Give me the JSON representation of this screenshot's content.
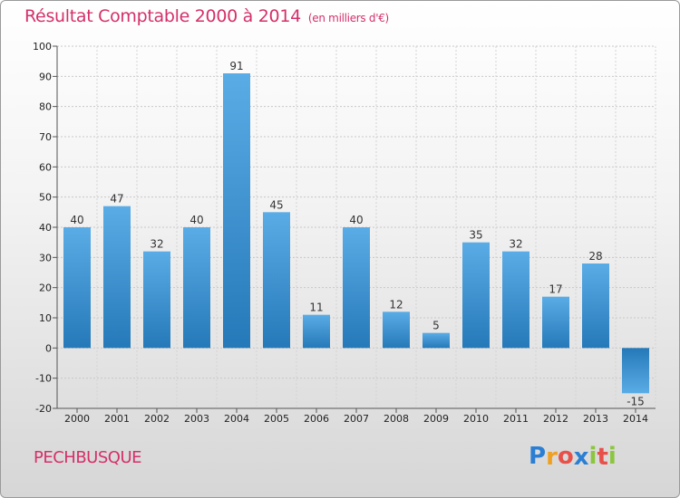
{
  "chart_data": {
    "type": "bar",
    "title": "Résultat Comptable 2000 à 2014",
    "subtitle": "(en milliers d'€)",
    "categories": [
      "2000",
      "2001",
      "2002",
      "2003",
      "2004",
      "2005",
      "2006",
      "2007",
      "2008",
      "2009",
      "2010",
      "2011",
      "2012",
      "2013",
      "2014"
    ],
    "values": [
      40,
      47,
      32,
      40,
      91,
      45,
      11,
      40,
      12,
      5,
      35,
      32,
      17,
      28,
      -15
    ],
    "ylim": [
      -20,
      100
    ],
    "yticks": [
      -20,
      -10,
      0,
      10,
      20,
      30,
      40,
      50,
      60,
      70,
      80,
      90,
      100
    ],
    "xlabel": "",
    "ylabel": "",
    "grid": "horizontal dashed",
    "bar_color_light": "#5aace6",
    "bar_color_dark": "#2579b8"
  },
  "footer": {
    "commune": "PECHBUSQUE",
    "logo_letters": [
      "P",
      "r",
      "o",
      "x",
      "i",
      "t",
      "i"
    ],
    "logo_colors": [
      "#2a7fd4",
      "#f0a020",
      "#e8504a",
      "#2a7fd4",
      "#8cc63f",
      "#e8504a",
      "#8cc63f"
    ]
  }
}
